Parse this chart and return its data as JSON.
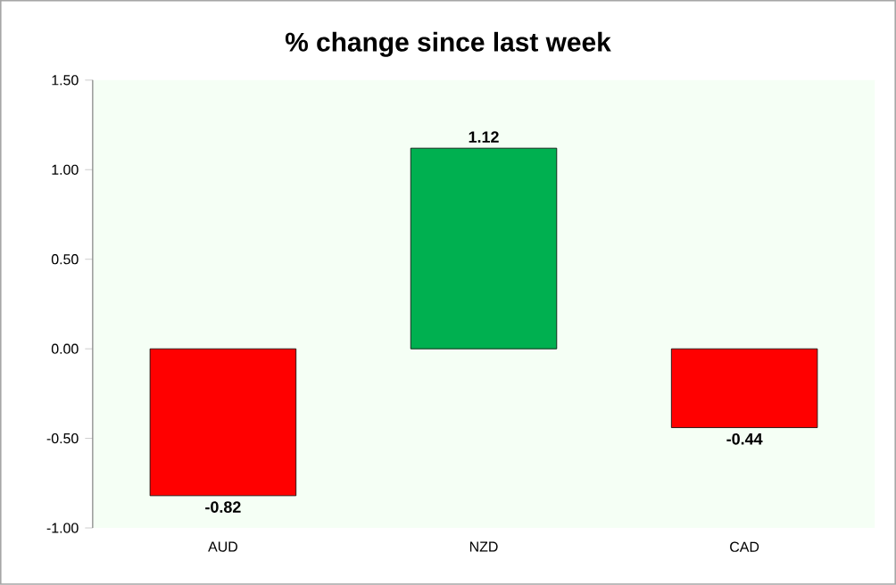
{
  "chart_data": {
    "type": "bar",
    "title": "% change since last week",
    "categories": [
      "AUD",
      "NZD",
      "CAD"
    ],
    "values": [
      -0.82,
      1.12,
      -0.44
    ],
    "colors": [
      "#ff0000",
      "#00b050",
      "#ff0000"
    ],
    "ylim": [
      -1.0,
      1.5
    ],
    "yticks": [
      {
        "value": -1.0,
        "label": "-1.00"
      },
      {
        "value": -0.5,
        "label": "-0.50"
      },
      {
        "value": 0.0,
        "label": "0.00"
      },
      {
        "value": 0.5,
        "label": "0.50"
      },
      {
        "value": 1.0,
        "label": "1.00"
      },
      {
        "value": 1.5,
        "label": "1.50"
      }
    ],
    "data_labels": true
  }
}
